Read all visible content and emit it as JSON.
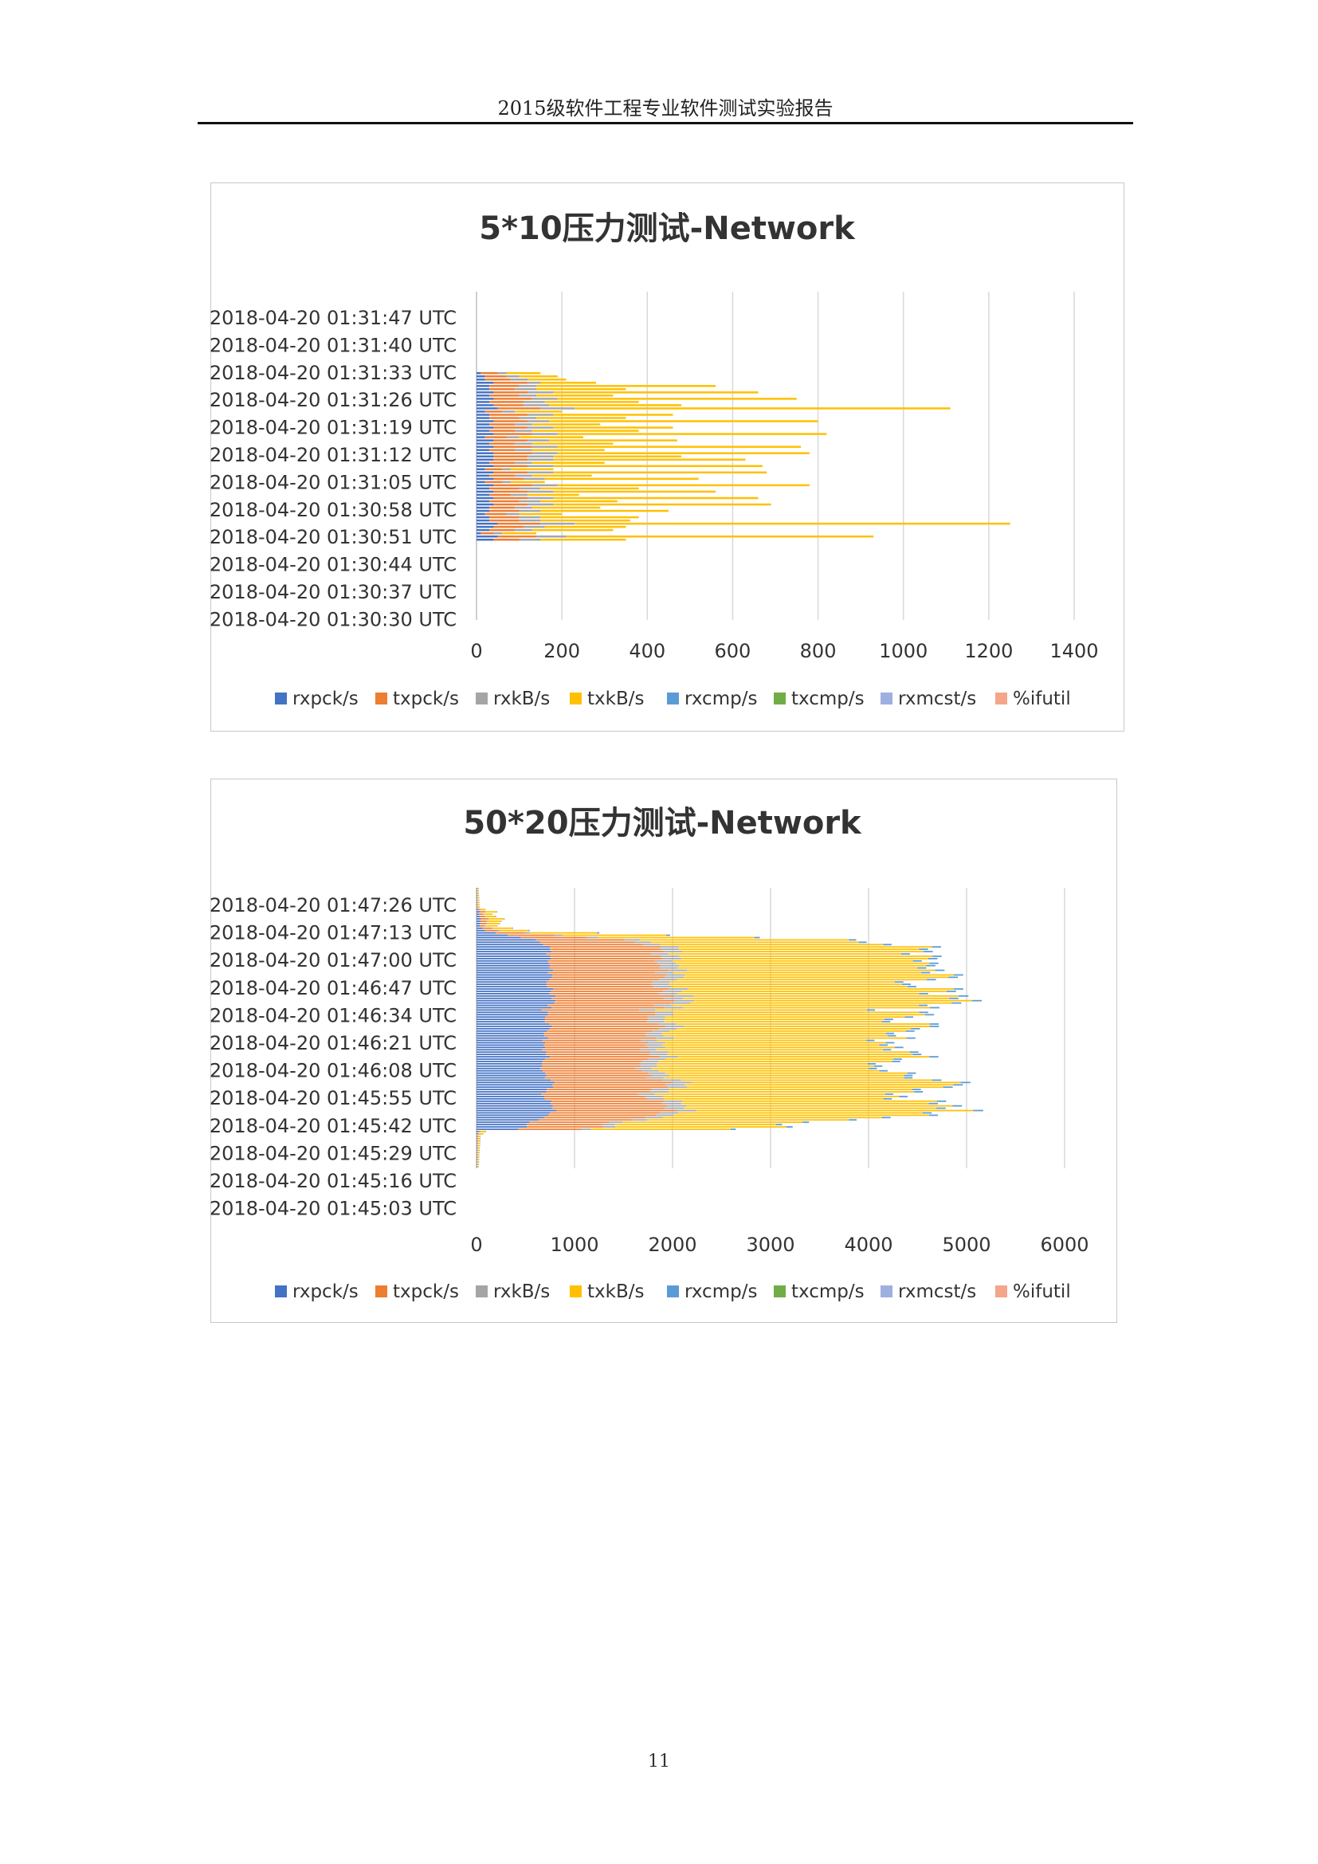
{
  "page": {
    "header": "2015级软件工程专业软件测试实验报告",
    "page_number": "11"
  },
  "legend_colors": {
    "rxpck/s": "#4472C4",
    "txpck/s": "#ED7D31",
    "rxkB/s": "#A5A5A5",
    "txkB/s": "#FFC000",
    "rxcmp/s": "#5B9BD5",
    "txcmp/s": "#70AD47",
    "rxmcst/s": "#9EB0E0",
    "%ifutil": "#F4A58A"
  },
  "chart_data": [
    {
      "type": "bar",
      "orientation": "horizontal",
      "stacked": true,
      "title": "5*10压力测试-Network",
      "xlim": [
        0,
        1400
      ],
      "x_ticks": [
        "0",
        "200",
        "400",
        "600",
        "800",
        "1000",
        "1200",
        "1400"
      ],
      "y_tick_labels": [
        "2018-04-20 01:31:47 UTC",
        "2018-04-20 01:31:40 UTC",
        "2018-04-20 01:31:33 UTC",
        "2018-04-20 01:31:26 UTC",
        "2018-04-20 01:31:19 UTC",
        "2018-04-20 01:31:12 UTC",
        "2018-04-20 01:31:05 UTC",
        "2018-04-20 01:30:58 UTC",
        "2018-04-20 01:30:51 UTC",
        "2018-04-20 01:30:44 UTC",
        "2018-04-20 01:30:37 UTC",
        "2018-04-20 01:30:30 UTC"
      ],
      "categories_order": "top-to-bottom",
      "vertical_grid": true,
      "legend": "bottom",
      "series_names": [
        "rxpck/s",
        "txpck/s",
        "rxkB/s",
        "txkB/s",
        "rxcmp/s",
        "txcmp/s",
        "rxmcst/s",
        "%ifutil"
      ],
      "bar_totals": [
        150,
        190,
        210,
        280,
        560,
        350,
        660,
        320,
        750,
        380,
        480,
        1110,
        200,
        460,
        350,
        800,
        290,
        460,
        380,
        820,
        250,
        470,
        320,
        760,
        300,
        780,
        480,
        630,
        300,
        670,
        180,
        680,
        270,
        520,
        160,
        780,
        380,
        560,
        240,
        660,
        330,
        690,
        290,
        450,
        200,
        380,
        360,
        1250,
        350,
        320,
        140,
        930,
        350
      ],
      "bar_components": [
        [
          10,
          40,
          20,
          80
        ],
        [
          20,
          50,
          30,
          90
        ],
        [
          20,
          60,
          40,
          90
        ],
        [
          40,
          80,
          30,
          130
        ],
        [
          30,
          70,
          40,
          420
        ],
        [
          30,
          60,
          50,
          210
        ],
        [
          40,
          80,
          60,
          480
        ],
        [
          30,
          70,
          40,
          180
        ],
        [
          40,
          90,
          60,
          560
        ],
        [
          30,
          80,
          50,
          220
        ],
        [
          40,
          70,
          60,
          310
        ],
        [
          50,
          100,
          80,
          880
        ],
        [
          20,
          40,
          30,
          110
        ],
        [
          30,
          90,
          60,
          280
        ],
        [
          30,
          70,
          40,
          210
        ],
        [
          40,
          80,
          50,
          630
        ],
        [
          30,
          60,
          40,
          160
        ],
        [
          40,
          80,
          60,
          280
        ],
        [
          30,
          60,
          40,
          250
        ],
        [
          40,
          90,
          60,
          630
        ],
        [
          20,
          50,
          30,
          150
        ],
        [
          40,
          80,
          50,
          300
        ],
        [
          30,
          60,
          40,
          190
        ],
        [
          40,
          90,
          60,
          570
        ],
        [
          30,
          60,
          40,
          170
        ],
        [
          40,
          90,
          60,
          590
        ],
        [
          40,
          80,
          60,
          300
        ],
        [
          40,
          80,
          60,
          450
        ],
        [
          30,
          60,
          40,
          170
        ],
        [
          40,
          80,
          60,
          490
        ],
        [
          20,
          40,
          20,
          100
        ],
        [
          40,
          80,
          60,
          500
        ],
        [
          30,
          60,
          40,
          140
        ],
        [
          40,
          70,
          50,
          360
        ],
        [
          20,
          40,
          20,
          80
        ],
        [
          40,
          90,
          60,
          590
        ],
        [
          30,
          70,
          50,
          230
        ],
        [
          40,
          80,
          60,
          380
        ],
        [
          30,
          50,
          40,
          120
        ],
        [
          40,
          80,
          60,
          480
        ],
        [
          30,
          70,
          50,
          180
        ],
        [
          40,
          80,
          60,
          510
        ],
        [
          30,
          60,
          40,
          160
        ],
        [
          30,
          70,
          50,
          300
        ],
        [
          20,
          50,
          30,
          100
        ],
        [
          30,
          70,
          50,
          230
        ],
        [
          30,
          70,
          50,
          210
        ],
        [
          50,
          100,
          80,
          1020
        ],
        [
          40,
          70,
          50,
          190
        ],
        [
          30,
          60,
          40,
          190
        ],
        [
          10,
          30,
          20,
          80
        ],
        [
          50,
          90,
          70,
          720
        ],
        [
          40,
          60,
          50,
          200
        ]
      ]
    },
    {
      "type": "bar",
      "orientation": "horizontal",
      "stacked": true,
      "title": "50*20压力测试-Network",
      "xlim": [
        0,
        6000
      ],
      "x_ticks": [
        "0",
        "1000",
        "2000",
        "3000",
        "4000",
        "5000",
        "6000"
      ],
      "y_tick_labels": [
        "2018-04-20 01:47:26 UTC",
        "2018-04-20 01:47:13 UTC",
        "2018-04-20 01:47:00 UTC",
        "2018-04-20 01:46:47 UTC",
        "2018-04-20 01:46:34 UTC",
        "2018-04-20 01:46:21 UTC",
        "2018-04-20 01:46:08 UTC",
        "2018-04-20 01:45:55 UTC",
        "2018-04-20 01:45:42 UTC",
        "2018-04-20 01:45:29 UTC",
        "2018-04-20 01:45:16 UTC",
        "2018-04-20 01:45:03 UTC"
      ],
      "categories_order": "top-to-bottom",
      "vertical_grid": true,
      "legend": "bottom",
      "series_names": [
        "rxpck/s",
        "txpck/s",
        "rxkB/s",
        "txkB/s",
        "rxcmp/s",
        "txcmp/s",
        "rxmcst/s",
        "%ifutil"
      ],
      "row_count": 120,
      "total_profile": [
        {
          "row": 0,
          "total": 20
        },
        {
          "row": 8,
          "total": 30
        },
        {
          "row": 9,
          "total": 90
        },
        {
          "row": 10,
          "total": 230
        },
        {
          "row": 11,
          "total": 150
        },
        {
          "row": 13,
          "total": 280
        },
        {
          "row": 16,
          "total": 220
        },
        {
          "row": 18,
          "total": 550
        },
        {
          "row": 20,
          "total": 2050
        },
        {
          "row": 22,
          "total": 3950
        },
        {
          "row": 24,
          "total": 4250
        },
        {
          "row": 26,
          "total": 4950
        },
        {
          "row": 30,
          "total": 4550
        },
        {
          "row": 34,
          "total": 4850
        },
        {
          "row": 40,
          "total": 4500
        },
        {
          "row": 44,
          "total": 4950
        },
        {
          "row": 48,
          "total": 5120
        },
        {
          "row": 52,
          "total": 4450
        },
        {
          "row": 56,
          "total": 4600
        },
        {
          "row": 60,
          "total": 4700
        },
        {
          "row": 66,
          "total": 4350
        },
        {
          "row": 72,
          "total": 4600
        },
        {
          "row": 78,
          "total": 4300
        },
        {
          "row": 84,
          "total": 4900
        },
        {
          "row": 88,
          "total": 4150
        },
        {
          "row": 92,
          "total": 4700
        },
        {
          "row": 96,
          "total": 5000
        },
        {
          "row": 100,
          "total": 3550
        },
        {
          "row": 103,
          "total": 2850
        },
        {
          "row": 104,
          "total": 100
        },
        {
          "row": 106,
          "total": 40
        },
        {
          "row": 119,
          "total": 20
        }
      ],
      "component_fractions": {
        "rxpck/s": 0.16,
        "txpck/s": 0.24,
        "rxkB/s": 0.04,
        "txkB/s": 0.54,
        "rxcmp/s": 0.02
      }
    }
  ]
}
